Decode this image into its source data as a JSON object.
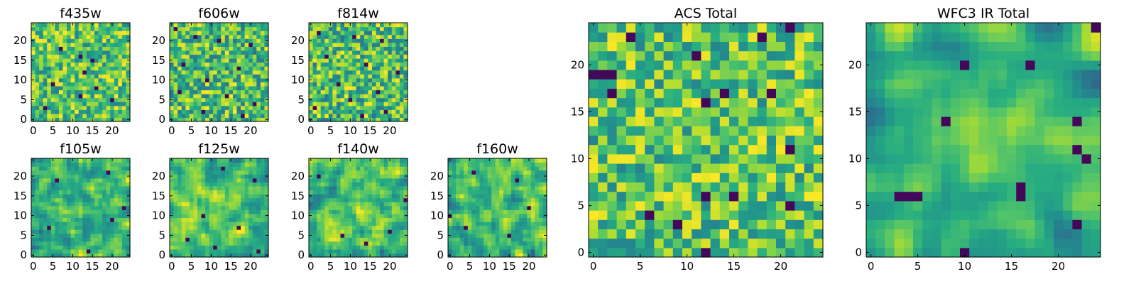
{
  "figure": {
    "description_free": true
  },
  "chart_data": [
    {
      "type": "heatmap",
      "title": "f435w",
      "grid_size": 25,
      "xlim": [
        0,
        25
      ],
      "ylim": [
        0,
        25
      ],
      "xticks": [
        "0",
        "5",
        "10",
        "15",
        "20"
      ],
      "yticks": [
        "0",
        "5",
        "10",
        "15",
        "20"
      ],
      "colormap": "viridis",
      "color_range": [
        0.45,
        1.0
      ],
      "seed": 11,
      "smooth": 0,
      "hot_bias": 0,
      "dark_pixels": [
        [
          12,
          16
        ],
        [
          15,
          15
        ],
        [
          13,
          12
        ],
        [
          5,
          9
        ],
        [
          16,
          8
        ],
        [
          12,
          6
        ],
        [
          7,
          18
        ],
        [
          20,
          5
        ],
        [
          3,
          3
        ]
      ]
    },
    {
      "type": "heatmap",
      "title": "f606w",
      "grid_size": 25,
      "xlim": [
        0,
        25
      ],
      "ylim": [
        0,
        25
      ],
      "xticks": [
        "0",
        "5",
        "10",
        "15",
        "20"
      ],
      "yticks": [
        "0",
        "5",
        "10",
        "15",
        "20"
      ],
      "colormap": "viridis",
      "color_range": [
        0.4,
        1.0
      ],
      "seed": 23,
      "smooth": 0,
      "hot_bias": 0,
      "dark_pixels": [
        [
          1,
          23
        ],
        [
          6,
          21
        ],
        [
          12,
          20
        ],
        [
          20,
          19
        ],
        [
          3,
          14
        ],
        [
          17,
          13
        ],
        [
          9,
          10
        ],
        [
          2,
          7
        ],
        [
          14,
          6
        ],
        [
          21,
          4
        ],
        [
          8,
          2
        ],
        [
          18,
          1
        ]
      ]
    },
    {
      "type": "heatmap",
      "title": "f814w",
      "grid_size": 25,
      "xlim": [
        0,
        25
      ],
      "ylim": [
        0,
        25
      ],
      "xticks": [
        "0",
        "5",
        "10",
        "15",
        "20"
      ],
      "yticks": [
        "0",
        "5",
        "10",
        "15",
        "20"
      ],
      "colormap": "viridis",
      "color_range": [
        0.4,
        1.0
      ],
      "seed": 37,
      "smooth": 0,
      "hot_bias": 0,
      "dark_pixels": [
        [
          2,
          22
        ],
        [
          11,
          21
        ],
        [
          18,
          20
        ],
        [
          4,
          16
        ],
        [
          14,
          14
        ],
        [
          22,
          12
        ],
        [
          7,
          9
        ],
        [
          17,
          7
        ],
        [
          10,
          5
        ],
        [
          1,
          3
        ],
        [
          19,
          2
        ],
        [
          13,
          1
        ]
      ]
    },
    {
      "type": "heatmap",
      "title": "f105w",
      "grid_size": 25,
      "xlim": [
        0,
        25
      ],
      "ylim": [
        0,
        25
      ],
      "xticks": [
        "0",
        "5",
        "10",
        "15",
        "20"
      ],
      "yticks": [
        "0",
        "5",
        "10",
        "15",
        "20"
      ],
      "colormap": "viridis",
      "color_range": [
        0.35,
        1.0
      ],
      "seed": 41,
      "smooth": 1,
      "hot_bias": 0.1,
      "dark_pixels": [
        [
          19,
          21
        ],
        [
          23,
          12
        ],
        [
          4,
          7
        ],
        [
          14,
          1
        ],
        [
          20,
          9
        ],
        [
          6,
          19
        ]
      ]
    },
    {
      "type": "heatmap",
      "title": "f125w",
      "grid_size": 25,
      "xlim": [
        0,
        25
      ],
      "ylim": [
        0,
        25
      ],
      "xticks": [
        "0",
        "5",
        "10",
        "15",
        "20"
      ],
      "yticks": [
        "0",
        "5",
        "10",
        "15",
        "20"
      ],
      "colormap": "viridis",
      "color_range": [
        0.35,
        1.0
      ],
      "seed": 53,
      "smooth": 1,
      "hot_bias": 0.1,
      "dark_pixels": [
        [
          13,
          22
        ],
        [
          21,
          19
        ],
        [
          8,
          10
        ],
        [
          17,
          7
        ],
        [
          4,
          4
        ],
        [
          11,
          2
        ],
        [
          22,
          1
        ]
      ]
    },
    {
      "type": "heatmap",
      "title": "f140w",
      "grid_size": 25,
      "xlim": [
        0,
        25
      ],
      "ylim": [
        0,
        25
      ],
      "xticks": [
        "0",
        "5",
        "10",
        "15",
        "20"
      ],
      "yticks": [
        "0",
        "5",
        "10",
        "15",
        "20"
      ],
      "colormap": "viridis",
      "color_range": [
        0.35,
        1.0
      ],
      "seed": 67,
      "smooth": 1,
      "hot_bias": 0.1,
      "dark_pixels": [
        [
          2,
          20
        ],
        [
          24,
          14
        ],
        [
          14,
          3
        ],
        [
          20,
          6
        ],
        [
          8,
          5
        ]
      ]
    },
    {
      "type": "heatmap",
      "title": "f160w",
      "grid_size": 25,
      "xlim": [
        0,
        25
      ],
      "ylim": [
        0,
        25
      ],
      "xticks": [
        "0",
        "5",
        "10",
        "15",
        "20"
      ],
      "yticks": [
        "0",
        "5",
        "10",
        "15",
        "20"
      ],
      "colormap": "viridis",
      "color_range": [
        0.3,
        1.0
      ],
      "seed": 79,
      "smooth": 1,
      "hot_bias": 0.1,
      "dark_pixels": [
        [
          0,
          10
        ],
        [
          15,
          5
        ],
        [
          4,
          7
        ],
        [
          20,
          12
        ],
        [
          17,
          19
        ],
        [
          6,
          21
        ]
      ]
    },
    {
      "type": "heatmap",
      "title": "ACS Total",
      "grid_size": 25,
      "xlim": [
        0,
        25
      ],
      "ylim": [
        0,
        25
      ],
      "xticks": [
        "0",
        "5",
        "10",
        "15",
        "20"
      ],
      "yticks": [
        "0",
        "5",
        "10",
        "15",
        "20"
      ],
      "colormap": "viridis",
      "color_range": [
        0.45,
        1.0
      ],
      "seed": 97,
      "smooth": 0,
      "hot_bias": 0,
      "dark_pixels": [
        [
          0,
          19
        ],
        [
          1,
          19
        ],
        [
          2,
          19
        ],
        [
          21,
          24
        ],
        [
          4,
          23
        ],
        [
          2,
          17
        ],
        [
          12,
          16
        ],
        [
          14,
          17
        ],
        [
          19,
          17
        ],
        [
          21,
          11
        ],
        [
          12,
          6
        ],
        [
          15,
          6
        ],
        [
          12,
          0
        ],
        [
          9,
          3
        ],
        [
          6,
          4
        ],
        [
          21,
          5
        ],
        [
          18,
          23
        ],
        [
          11,
          21
        ]
      ]
    },
    {
      "type": "heatmap",
      "title": "WFC3 IR Total",
      "grid_size": 25,
      "xlim": [
        0,
        25
      ],
      "ylim": [
        0,
        25
      ],
      "xticks": [
        "0",
        "5",
        "10",
        "15",
        "20"
      ],
      "yticks": [
        "0",
        "5",
        "10",
        "15",
        "20"
      ],
      "colormap": "viridis",
      "color_range": [
        0.35,
        0.95
      ],
      "seed": 113,
      "smooth": 2,
      "hot_bias": 0.2,
      "dark_pixels": [
        [
          24,
          24
        ],
        [
          17,
          20
        ],
        [
          10,
          20
        ],
        [
          8,
          14
        ],
        [
          22,
          14
        ],
        [
          22,
          11
        ],
        [
          23,
          10
        ],
        [
          3,
          6
        ],
        [
          4,
          6
        ],
        [
          5,
          6
        ],
        [
          16,
          6
        ],
        [
          16,
          7
        ],
        [
          22,
          3
        ],
        [
          10,
          0
        ]
      ]
    }
  ]
}
